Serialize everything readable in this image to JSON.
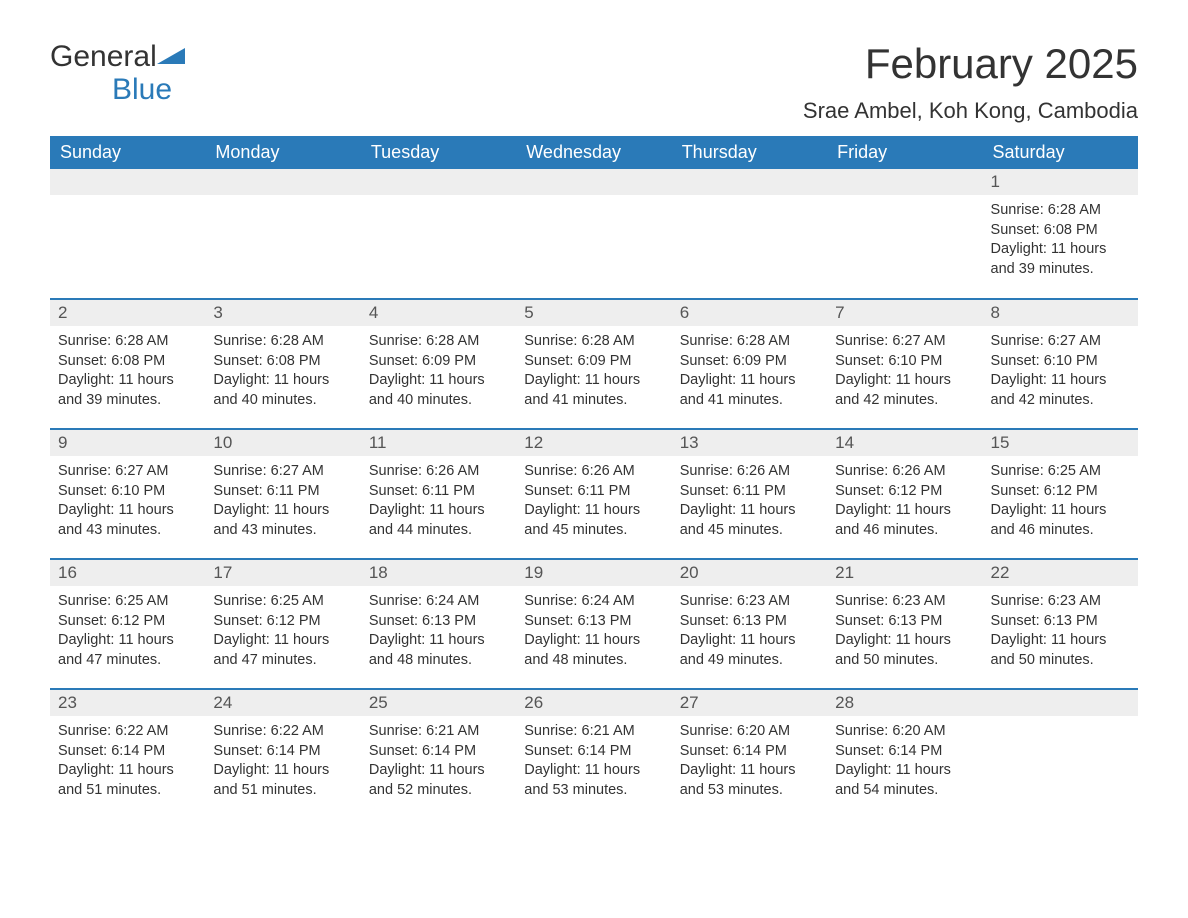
{
  "brand": {
    "part1": "General",
    "part2": "Blue"
  },
  "title": "February 2025",
  "location": "Srae Ambel, Koh Kong, Cambodia",
  "colors": {
    "accent": "#2a7ab8",
    "header_text": "#ffffff",
    "daynum_bg": "#eeeeee",
    "body_bg": "#ffffff",
    "text": "#333333"
  },
  "typography": {
    "title_fontsize_pt": 32,
    "location_fontsize_pt": 17,
    "day_header_fontsize_pt": 14,
    "body_fontsize_pt": 11
  },
  "day_headers": [
    "Sunday",
    "Monday",
    "Tuesday",
    "Wednesday",
    "Thursday",
    "Friday",
    "Saturday"
  ],
  "labels": {
    "sunrise": "Sunrise:",
    "sunset": "Sunset:",
    "daylight": "Daylight:"
  },
  "weeks": [
    [
      null,
      null,
      null,
      null,
      null,
      null,
      {
        "n": "1",
        "sunrise": "6:28 AM",
        "sunset": "6:08 PM",
        "daylight": "11 hours and 39 minutes."
      }
    ],
    [
      {
        "n": "2",
        "sunrise": "6:28 AM",
        "sunset": "6:08 PM",
        "daylight": "11 hours and 39 minutes."
      },
      {
        "n": "3",
        "sunrise": "6:28 AM",
        "sunset": "6:08 PM",
        "daylight": "11 hours and 40 minutes."
      },
      {
        "n": "4",
        "sunrise": "6:28 AM",
        "sunset": "6:09 PM",
        "daylight": "11 hours and 40 minutes."
      },
      {
        "n": "5",
        "sunrise": "6:28 AM",
        "sunset": "6:09 PM",
        "daylight": "11 hours and 41 minutes."
      },
      {
        "n": "6",
        "sunrise": "6:28 AM",
        "sunset": "6:09 PM",
        "daylight": "11 hours and 41 minutes."
      },
      {
        "n": "7",
        "sunrise": "6:27 AM",
        "sunset": "6:10 PM",
        "daylight": "11 hours and 42 minutes."
      },
      {
        "n": "8",
        "sunrise": "6:27 AM",
        "sunset": "6:10 PM",
        "daylight": "11 hours and 42 minutes."
      }
    ],
    [
      {
        "n": "9",
        "sunrise": "6:27 AM",
        "sunset": "6:10 PM",
        "daylight": "11 hours and 43 minutes."
      },
      {
        "n": "10",
        "sunrise": "6:27 AM",
        "sunset": "6:11 PM",
        "daylight": "11 hours and 43 minutes."
      },
      {
        "n": "11",
        "sunrise": "6:26 AM",
        "sunset": "6:11 PM",
        "daylight": "11 hours and 44 minutes."
      },
      {
        "n": "12",
        "sunrise": "6:26 AM",
        "sunset": "6:11 PM",
        "daylight": "11 hours and 45 minutes."
      },
      {
        "n": "13",
        "sunrise": "6:26 AM",
        "sunset": "6:11 PM",
        "daylight": "11 hours and 45 minutes."
      },
      {
        "n": "14",
        "sunrise": "6:26 AM",
        "sunset": "6:12 PM",
        "daylight": "11 hours and 46 minutes."
      },
      {
        "n": "15",
        "sunrise": "6:25 AM",
        "sunset": "6:12 PM",
        "daylight": "11 hours and 46 minutes."
      }
    ],
    [
      {
        "n": "16",
        "sunrise": "6:25 AM",
        "sunset": "6:12 PM",
        "daylight": "11 hours and 47 minutes."
      },
      {
        "n": "17",
        "sunrise": "6:25 AM",
        "sunset": "6:12 PM",
        "daylight": "11 hours and 47 minutes."
      },
      {
        "n": "18",
        "sunrise": "6:24 AM",
        "sunset": "6:13 PM",
        "daylight": "11 hours and 48 minutes."
      },
      {
        "n": "19",
        "sunrise": "6:24 AM",
        "sunset": "6:13 PM",
        "daylight": "11 hours and 48 minutes."
      },
      {
        "n": "20",
        "sunrise": "6:23 AM",
        "sunset": "6:13 PM",
        "daylight": "11 hours and 49 minutes."
      },
      {
        "n": "21",
        "sunrise": "6:23 AM",
        "sunset": "6:13 PM",
        "daylight": "11 hours and 50 minutes."
      },
      {
        "n": "22",
        "sunrise": "6:23 AM",
        "sunset": "6:13 PM",
        "daylight": "11 hours and 50 minutes."
      }
    ],
    [
      {
        "n": "23",
        "sunrise": "6:22 AM",
        "sunset": "6:14 PM",
        "daylight": "11 hours and 51 minutes."
      },
      {
        "n": "24",
        "sunrise": "6:22 AM",
        "sunset": "6:14 PM",
        "daylight": "11 hours and 51 minutes."
      },
      {
        "n": "25",
        "sunrise": "6:21 AM",
        "sunset": "6:14 PM",
        "daylight": "11 hours and 52 minutes."
      },
      {
        "n": "26",
        "sunrise": "6:21 AM",
        "sunset": "6:14 PM",
        "daylight": "11 hours and 53 minutes."
      },
      {
        "n": "27",
        "sunrise": "6:20 AM",
        "sunset": "6:14 PM",
        "daylight": "11 hours and 53 minutes."
      },
      {
        "n": "28",
        "sunrise": "6:20 AM",
        "sunset": "6:14 PM",
        "daylight": "11 hours and 54 minutes."
      },
      null
    ]
  ]
}
